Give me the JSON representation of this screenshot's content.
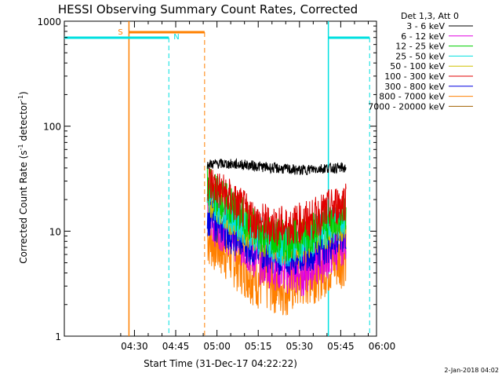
{
  "chart_data": {
    "type": "line",
    "title": "HESSI Observing Summary Count Rates, Corrected",
    "xlabel": "Start Time (31-Dec-17 04:22:22)",
    "ylabel": "Corrected Count Rate (s",
    "ylabel_sup1": "-1",
    "ylabel_mid": " detector",
    "ylabel_sup2": "-1",
    "ylabel_end": ")",
    "yscale": "log",
    "ylim": [
      1,
      1000
    ],
    "xlim_minutes": [
      4.5,
      103
    ],
    "x_ticks": [
      {
        "minute": 30,
        "label": "04:30"
      },
      {
        "minute": 45,
        "label": "04:45"
      },
      {
        "minute": 60,
        "label": "05:00"
      },
      {
        "minute": 75,
        "label": "05:15"
      },
      {
        "minute": 90,
        "label": "05:30"
      },
      {
        "minute": 105,
        "label": "05:45"
      },
      {
        "minute": 120,
        "label": "06:00"
      }
    ],
    "y_ticks": [
      {
        "value": 1,
        "label": "1"
      },
      {
        "value": 10,
        "label": "10"
      },
      {
        "value": 100,
        "label": "100"
      },
      {
        "value": 1000,
        "label": "1000"
      }
    ],
    "legend_header": "Det 1,3, Att 0",
    "legend_position": "right",
    "series": [
      {
        "name": "3 - 6 keV",
        "color": "#000000",
        "points": [
          [
            56.5,
            43
          ],
          [
            60,
            44
          ],
          [
            70,
            43
          ],
          [
            80,
            40
          ],
          [
            90,
            38
          ],
          [
            100,
            40
          ],
          [
            107,
            40
          ]
        ]
      },
      {
        "name": "6 - 12 keV",
        "color": "#e000e0",
        "points": [
          [
            56.5,
            14
          ],
          [
            65,
            10
          ],
          [
            75,
            5.5
          ],
          [
            90,
            4
          ],
          [
            100,
            6
          ],
          [
            107,
            9
          ]
        ]
      },
      {
        "name": "12 - 25 keV",
        "color": "#00d000",
        "points": [
          [
            56.5,
            27
          ],
          [
            65,
            17
          ],
          [
            75,
            10
          ],
          [
            85,
            8
          ],
          [
            95,
            10
          ],
          [
            107,
            16
          ]
        ]
      },
      {
        "name": "25 - 50 keV",
        "color": "#00e0e0",
        "points": [
          [
            56.5,
            22
          ],
          [
            65,
            15
          ],
          [
            75,
            9
          ],
          [
            85,
            7
          ],
          [
            95,
            9
          ],
          [
            107,
            14
          ]
        ]
      },
      {
        "name": "50 - 100 keV",
        "color": "#d0c000",
        "points": [
          [
            56.5,
            20
          ],
          [
            65,
            14
          ],
          [
            75,
            9
          ],
          [
            85,
            7.5
          ],
          [
            95,
            9
          ],
          [
            107,
            13
          ]
        ]
      },
      {
        "name": "100 - 300 keV",
        "color": "#e00000",
        "points": [
          [
            56.5,
            30
          ],
          [
            65,
            20
          ],
          [
            75,
            12
          ],
          [
            85,
            11
          ],
          [
            95,
            13
          ],
          [
            107,
            20
          ]
        ]
      },
      {
        "name": "300 - 800 keV",
        "color": "#0000e0",
        "points": [
          [
            56.5,
            15
          ],
          [
            65,
            10
          ],
          [
            75,
            7
          ],
          [
            85,
            6
          ],
          [
            95,
            7
          ],
          [
            107,
            10
          ]
        ]
      },
      {
        "name": "800 - 7000 keV",
        "color": "#ff8000",
        "points": [
          [
            56.5,
            9
          ],
          [
            65,
            6
          ],
          [
            75,
            3.5
          ],
          [
            85,
            3
          ],
          [
            95,
            4
          ],
          [
            107,
            6
          ]
        ]
      },
      {
        "name": "7000 - 20000 keV",
        "color": "#a06000",
        "points": []
      }
    ],
    "annotations": [
      {
        "label": "S",
        "color": "#ff8000"
      },
      {
        "label": "N",
        "color": "#00e0e0"
      }
    ],
    "footer": "2-Jan-2018 04:02"
  }
}
